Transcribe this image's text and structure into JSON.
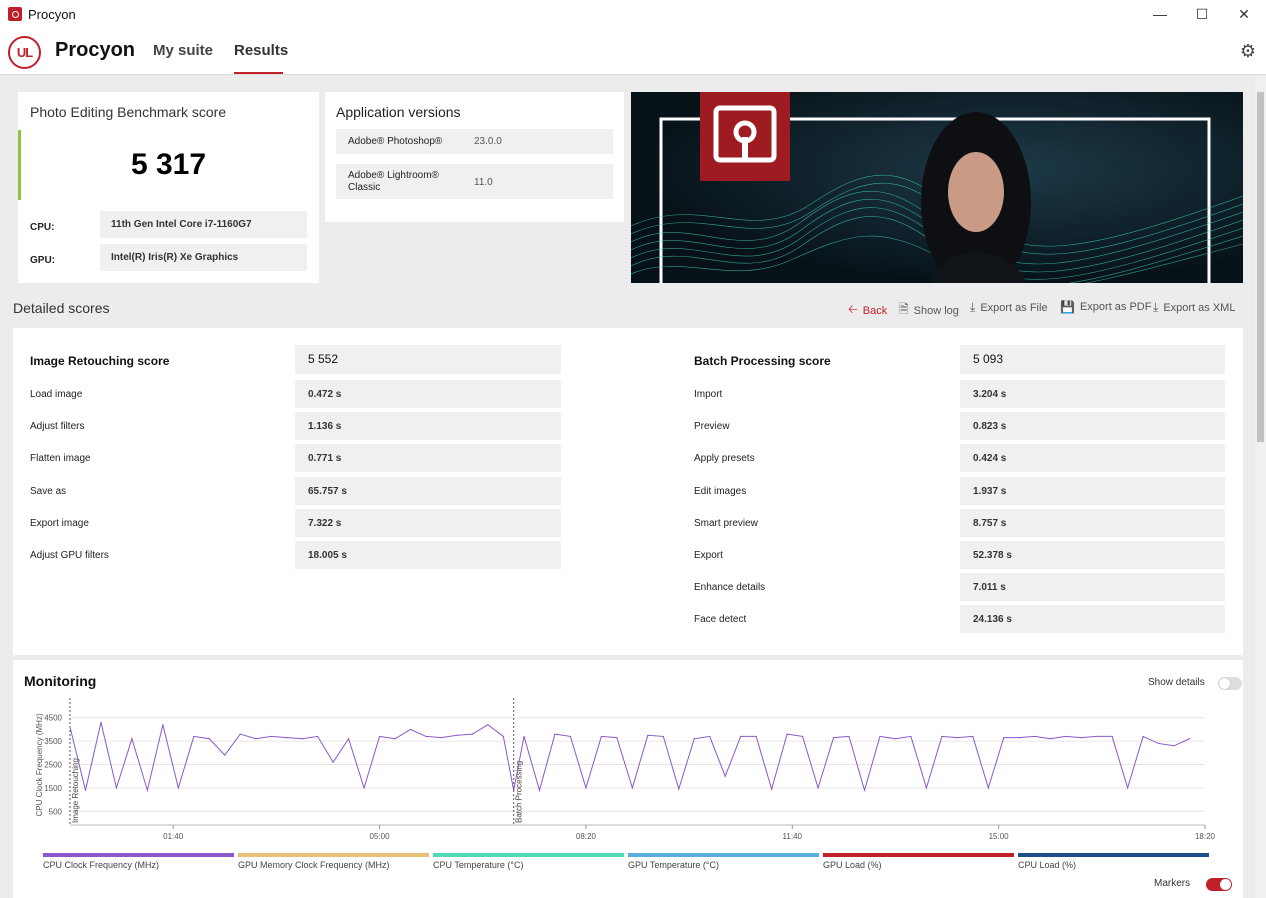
{
  "window": {
    "title": "Procyon"
  },
  "header": {
    "logo_text": "UL",
    "brand": "Procyon",
    "tabs": [
      {
        "label": "My suite",
        "active": false
      },
      {
        "label": "Results",
        "active": true
      }
    ]
  },
  "score_card": {
    "title": "Photo Editing Benchmark score",
    "score": "5 317",
    "cpu_label": "CPU:",
    "cpu_value": "11th Gen Intel Core i7-1160G7",
    "gpu_label": "GPU:",
    "gpu_value": "Intel(R) Iris(R) Xe Graphics"
  },
  "app_versions": {
    "title": "Application versions",
    "rows": [
      {
        "name": "Adobe® Photoshop®",
        "version": "23.0.0"
      },
      {
        "name_line1": "Adobe® Lightroom®",
        "name_line2": "Classic",
        "version": "11.0"
      }
    ]
  },
  "detailed": {
    "title": "Detailed scores",
    "actions": {
      "back": "Back",
      "show_log": "Show log",
      "export_file": "Export as File",
      "export_pdf": "Export as PDF",
      "export_xml": "Export as XML"
    },
    "left": {
      "head_label": "Image Retouching score",
      "head_value": "5 552",
      "rows": [
        {
          "label": "Load image",
          "value": "0.472 s"
        },
        {
          "label": "Adjust filters",
          "value": "1.136 s"
        },
        {
          "label": "Flatten image",
          "value": "0.771 s"
        },
        {
          "label": "Save as",
          "value": "65.757 s"
        },
        {
          "label": "Export image",
          "value": "7.322 s"
        },
        {
          "label": "Adjust GPU filters",
          "value": "18.005 s"
        }
      ]
    },
    "right": {
      "head_label": "Batch Processing score",
      "head_value": "5 093",
      "rows": [
        {
          "label": "Import",
          "value": "3.204 s"
        },
        {
          "label": "Preview",
          "value": "0.823 s"
        },
        {
          "label": "Apply presets",
          "value": "0.424 s"
        },
        {
          "label": "Edit images",
          "value": "1.937 s"
        },
        {
          "label": "Smart preview",
          "value": "8.757 s"
        },
        {
          "label": "Export",
          "value": "52.378 s"
        },
        {
          "label": "Enhance details",
          "value": "7.011 s"
        },
        {
          "label": "Face detect",
          "value": "24.136 s"
        }
      ]
    }
  },
  "monitoring": {
    "title": "Monitoring",
    "show_details": "Show details",
    "markers": "Markers",
    "legend": [
      {
        "label": "CPU Clock Frequency (MHz)",
        "color": "#8c57c8"
      },
      {
        "label": "GPU Memory Clock Frequency (MHz)",
        "color": "#e8c07a"
      },
      {
        "label": "CPU Temperature (°C)",
        "color": "#4fd9b8"
      },
      {
        "label": "GPU Temperature (°C)",
        "color": "#5aaede"
      },
      {
        "label": "GPU Load (%)",
        "color": "#c0202a"
      },
      {
        "label": "CPU Load (%)",
        "color": "#1f4f8a"
      }
    ]
  },
  "chart_data": {
    "type": "line",
    "ylabel": "CPU Clock Frequency (MHz)",
    "yticks": [
      500,
      1500,
      2500,
      3500,
      4500
    ],
    "ylim": [
      0,
      5000
    ],
    "xticks": [
      "01:40",
      "05:00",
      "08:20",
      "11:40",
      "15:00",
      "18:20"
    ],
    "markers": [
      {
        "label": "Image Retouching",
        "x": "00:00"
      },
      {
        "label": "Batch Processing",
        "x": "07:10"
      }
    ],
    "series": [
      {
        "name": "CPU Clock Frequency (MHz)",
        "color": "#8c57c8",
        "x": [
          "00:00",
          "00:15",
          "00:30",
          "00:45",
          "01:00",
          "01:15",
          "01:30",
          "01:45",
          "02:00",
          "02:15",
          "02:30",
          "02:45",
          "03:00",
          "03:15",
          "03:30",
          "03:45",
          "04:00",
          "04:15",
          "04:30",
          "04:45",
          "05:00",
          "05:15",
          "05:30",
          "05:45",
          "06:00",
          "06:15",
          "06:30",
          "06:45",
          "07:00",
          "07:10",
          "07:20",
          "07:35",
          "07:50",
          "08:05",
          "08:20",
          "08:35",
          "08:50",
          "09:05",
          "09:20",
          "09:35",
          "09:50",
          "10:05",
          "10:20",
          "10:35",
          "10:50",
          "11:05",
          "11:20",
          "11:35",
          "11:50",
          "12:05",
          "12:20",
          "12:35",
          "12:50",
          "13:05",
          "13:20",
          "13:35",
          "13:50",
          "14:05",
          "14:20",
          "14:35",
          "14:50",
          "15:05",
          "15:20",
          "15:35",
          "15:50",
          "16:05",
          "16:20",
          "16:35",
          "16:50",
          "17:05",
          "17:20",
          "17:35",
          "17:50",
          "18:05"
        ],
        "values": [
          4100,
          1400,
          4300,
          1500,
          3600,
          1400,
          4200,
          1500,
          3700,
          3600,
          2900,
          3800,
          3600,
          3700,
          3650,
          3600,
          3700,
          2600,
          3600,
          1500,
          3700,
          3600,
          4000,
          3700,
          3650,
          3750,
          3800,
          4200,
          3700,
          1400,
          3700,
          1400,
          3800,
          3700,
          1500,
          3700,
          3650,
          1500,
          3750,
          3700,
          1450,
          3600,
          3700,
          2000,
          3700,
          3700,
          1450,
          3800,
          3700,
          1500,
          3650,
          3700,
          1400,
          3700,
          3600,
          3700,
          1500,
          3700,
          3650,
          3700,
          1500,
          3650,
          3650,
          3700,
          3600,
          3700,
          3650,
          3700,
          3700,
          1500,
          3700,
          3400,
          3300,
          3600
        ]
      }
    ]
  }
}
